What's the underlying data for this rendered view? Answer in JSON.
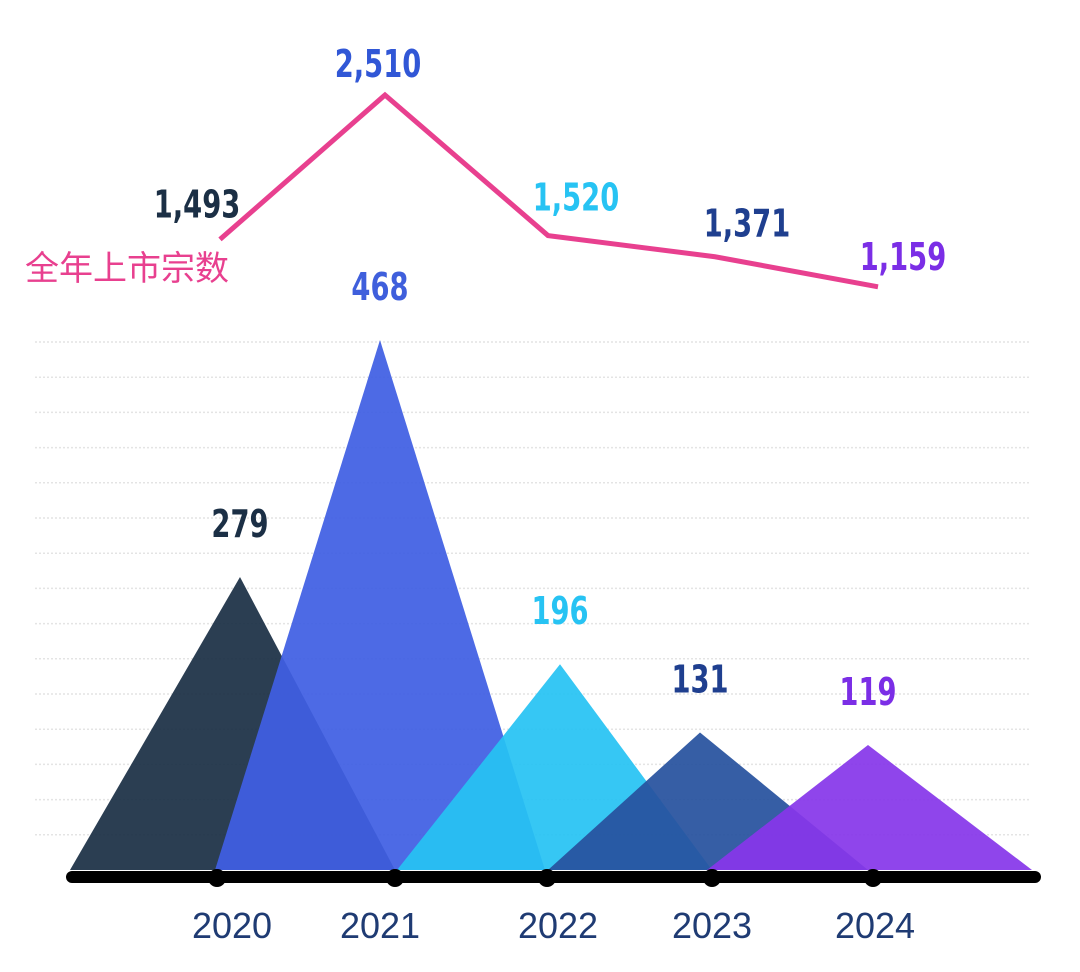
{
  "chart_data": [
    {
      "type": "line",
      "categories": [
        "2020",
        "2021",
        "2022",
        "2023",
        "2024"
      ],
      "series": [
        {
          "name": "全年上市宗数",
          "values": [
            1493,
            2510,
            1520,
            1371,
            1159
          ],
          "labels": [
            "1,493",
            "2,510",
            "1,520",
            "1,371",
            "1,159"
          ],
          "color": "#e8408f"
        }
      ],
      "label_colors": [
        "#1b2f45",
        "#3157d6",
        "#27c3f3",
        "#1f3f8f",
        "#7b2ee6"
      ],
      "grid": false
    },
    {
      "type": "area",
      "shape": "triangles",
      "categories": [
        "2020",
        "2021",
        "2022",
        "2023",
        "2024"
      ],
      "values": [
        279,
        468,
        196,
        131,
        119
      ],
      "labels": [
        "279",
        "468",
        "196",
        "131",
        "119"
      ],
      "colors": [
        "#1b2f45",
        "#3f5fe3",
        "#27c3f3",
        "#27529e",
        "#8637ea"
      ],
      "label_colors": [
        "#1b2f45",
        "#3f5fdc",
        "#27c3f3",
        "#1f3f8f",
        "#7b2ee6"
      ],
      "grid": true,
      "axis_color": "#000000"
    }
  ]
}
